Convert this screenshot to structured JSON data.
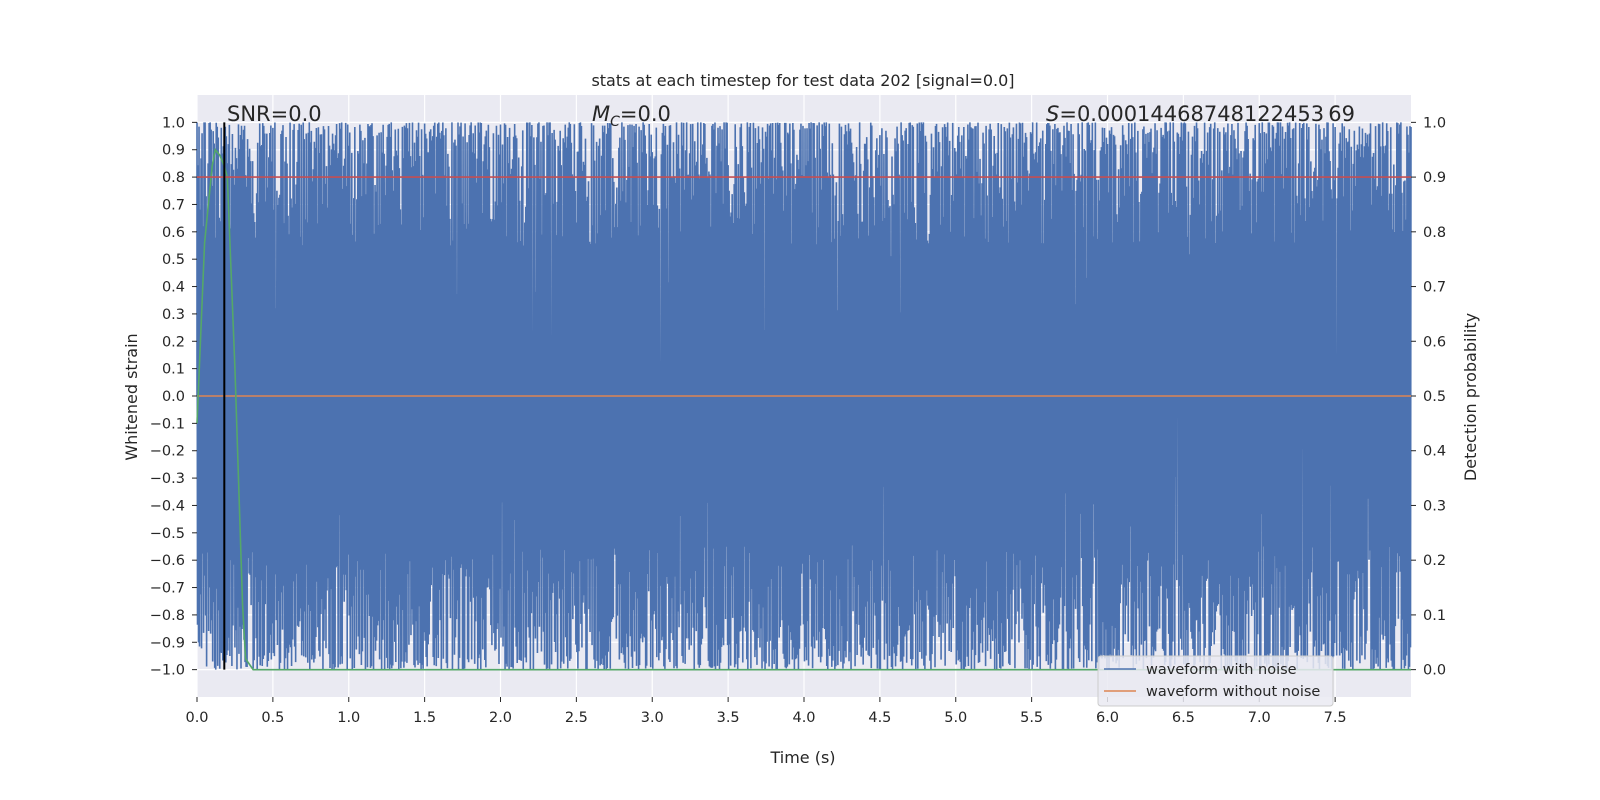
{
  "chart_data": {
    "type": "line",
    "title": "stats at each timestep for test data 202 [signal=0.0]",
    "xlabel": "Time (s)",
    "ylabel": "Whitened strain",
    "ylabel_right": "Detection probability",
    "xlim": [
      0.0,
      8.0
    ],
    "ylim": [
      -1.1,
      1.1
    ],
    "ylim_right": [
      -0.05,
      1.05
    ],
    "x_ticks": [
      0.0,
      0.5,
      1.0,
      1.5,
      2.0,
      2.5,
      3.0,
      3.5,
      4.0,
      4.5,
      5.0,
      5.5,
      6.0,
      6.5,
      7.0,
      7.5
    ],
    "x_tick_labels": [
      "0.0",
      "0.5",
      "1.0",
      "1.5",
      "2.0",
      "2.5",
      "3.0",
      "3.5",
      "4.0",
      "4.5",
      "5.0",
      "5.5",
      "6.0",
      "6.5",
      "7.0",
      "7.5"
    ],
    "y_ticks": [
      1.0,
      0.9,
      0.8,
      0.7,
      0.6,
      0.5,
      0.4,
      0.3,
      0.2,
      0.1,
      0.0,
      -0.1,
      -0.2,
      -0.3,
      -0.4,
      -0.5,
      -0.6,
      -0.7,
      -0.8,
      -0.9,
      -1.0
    ],
    "y_tick_labels": [
      "1.0",
      "0.9",
      "0.8",
      "0.7",
      "0.6",
      "0.5",
      "0.4",
      "0.3",
      "0.2",
      "0.1",
      "0.0",
      "−0.1",
      "−0.2",
      "−0.3",
      "−0.4",
      "−0.5",
      "−0.6",
      "−0.7",
      "−0.8",
      "−0.9",
      "−1.0"
    ],
    "y_right_ticks": [
      1.0,
      0.9,
      0.8,
      0.7,
      0.6,
      0.5,
      0.4,
      0.3,
      0.2,
      0.1,
      0.0
    ],
    "y_right_tick_labels": [
      "1.0",
      "0.9",
      "0.8",
      "0.7",
      "0.6",
      "0.5",
      "0.4",
      "0.3",
      "0.2",
      "0.1",
      "0.0"
    ],
    "grid": true,
    "legend_position": "bottom-right",
    "annotations": {
      "snr": "SNR=0.0",
      "mc_symbol": "M",
      "mc_sub": "C",
      "mc_value": "=0.0",
      "s_symbol": "S",
      "s_value": "=0.00014468748122453 69"
    },
    "series": [
      {
        "name": "waveform with noise",
        "color": "#4c72b0",
        "description": "dense whitened noise oscillating between about -1.0 and 1.0 over 0-8 s",
        "value_range": [
          -1.0,
          1.0
        ]
      },
      {
        "name": "waveform without noise",
        "color": "#dd8452",
        "x": [
          0.0,
          8.0
        ],
        "y": [
          0.0,
          0.0
        ]
      },
      {
        "name": "detection probability",
        "color": "#55a868",
        "axis": "right",
        "x": [
          0.0,
          0.05,
          0.1,
          0.12,
          0.15,
          0.18,
          0.2,
          0.25,
          0.3,
          0.32,
          0.37,
          0.5,
          8.0
        ],
        "y": [
          0.45,
          0.78,
          0.92,
          0.95,
          0.94,
          0.92,
          0.9,
          0.55,
          0.12,
          0.02,
          0.0,
          0.0,
          0.0
        ]
      },
      {
        "name": "threshold",
        "color": "#c44e52",
        "axis": "right",
        "x": [
          0.0,
          8.0
        ],
        "y": [
          0.9,
          0.9
        ]
      },
      {
        "name": "marker",
        "color": "#000000",
        "x": [
          0.18,
          0.18
        ],
        "y": [
          -1.0,
          1.0
        ]
      }
    ]
  }
}
